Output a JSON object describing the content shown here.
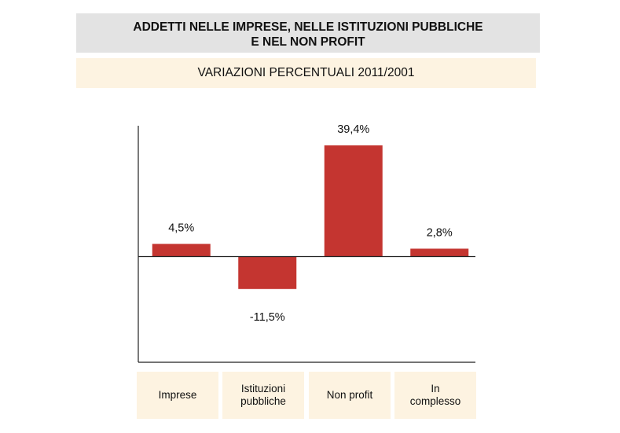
{
  "header": {
    "title_line1": "ADDETTI NELLE IMPRESE, NELLE ISTITUZIONI PUBBLICHE",
    "title_line2": "E NEL NON PROFIT",
    "subtitle": "VARIAZIONI PERCENTUALI 2011/2001"
  },
  "colors": {
    "bar": "#c43530",
    "title_bg": "#e3e3e3",
    "label_bg": "#fdf3e1"
  },
  "chart_data": {
    "type": "bar",
    "title": "ADDETTI NELLE IMPRESE, NELLE ISTITUZIONI PUBBLICHE E NEL NON PROFIT",
    "subtitle": "VARIAZIONI PERCENTUALI 2011/2001",
    "categories": [
      "Imprese",
      "Istituzioni pubbliche",
      "Non profit",
      "In complesso"
    ],
    "category_lines": [
      [
        "Imprese"
      ],
      [
        "Istituzioni",
        "pubbliche"
      ],
      [
        "Non profit"
      ],
      [
        "In",
        "complesso"
      ]
    ],
    "values": [
      4.5,
      -11.5,
      39.4,
      2.8
    ],
    "data_labels": [
      "4,5%",
      "-11,5%",
      "39,4%",
      "2,8%"
    ],
    "ylim": [
      -46,
      46
    ],
    "grid": false,
    "legend": "none"
  }
}
